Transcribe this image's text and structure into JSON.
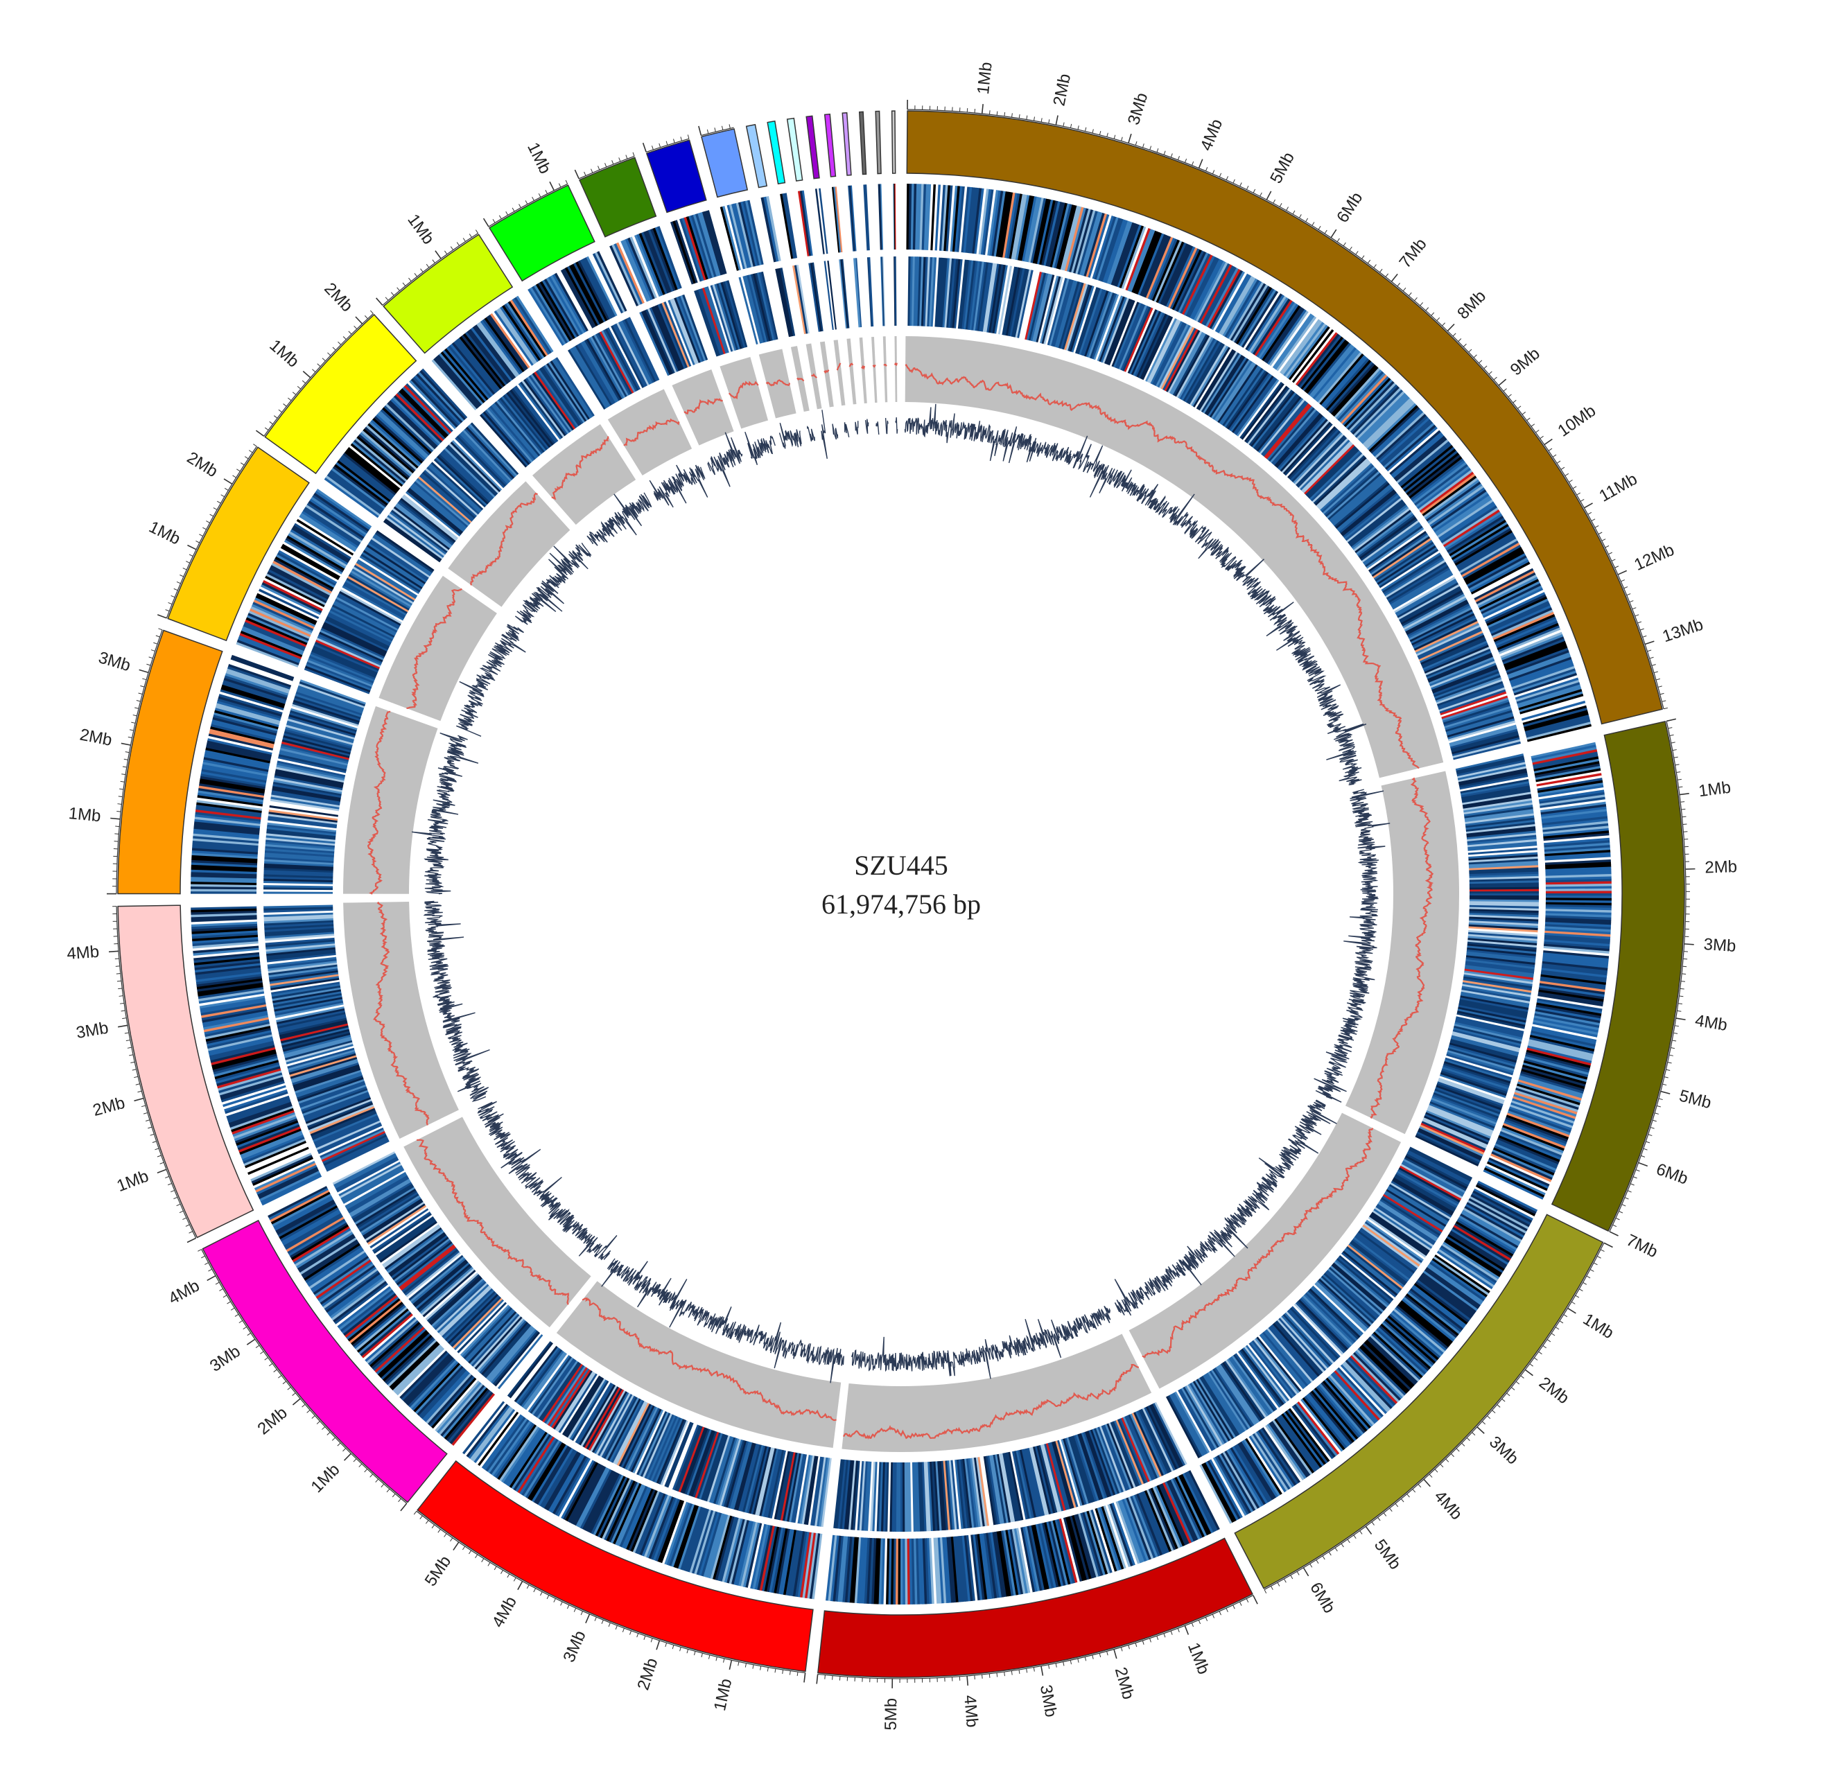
{
  "center": {
    "name": "SZU445",
    "size_label": "61,974,756 bp"
  },
  "chromosomes": [
    {
      "id": "chr1",
      "size_mb": 13.9,
      "color": "#996600",
      "labels": [
        "1Mb",
        "2Mb",
        "3Mb",
        "4Mb",
        "5Mb",
        "6Mb",
        "7Mb",
        "8Mb",
        "9Mb",
        "10Mb",
        "11Mb",
        "12Mb",
        "13Mb"
      ],
      "label_dir": "cw"
    },
    {
      "id": "chr2",
      "size_mb": 7.0,
      "color": "#666600",
      "labels": [
        "1Mb",
        "2Mb",
        "3Mb",
        "4Mb",
        "5Mb",
        "6Mb",
        "7Mb"
      ],
      "label_dir": "cw"
    },
    {
      "id": "chr3",
      "size_mb": 6.6,
      "color": "#99991E",
      "labels": [
        "1Mb",
        "2Mb",
        "3Mb",
        "4Mb",
        "5Mb",
        "6Mb"
      ],
      "label_dir": "cw"
    },
    {
      "id": "chr4",
      "size_mb": 6.0,
      "color": "#CC0000",
      "labels": [
        "1Mb",
        "2Mb",
        "3Mb",
        "4Mb",
        "5Mb"
      ],
      "label_dir": "cw"
    },
    {
      "id": "chr5",
      "size_mb": 5.7,
      "color": "#FF0000",
      "labels": [
        "1Mb",
        "2Mb",
        "3Mb",
        "4Mb",
        "5Mb"
      ],
      "label_dir": "ccw"
    },
    {
      "id": "chr6",
      "size_mb": 4.4,
      "color": "#FF00CC",
      "labels": [
        "1Mb",
        "2Mb",
        "3Mb",
        "4Mb"
      ],
      "label_dir": "ccw"
    },
    {
      "id": "chr7",
      "size_mb": 4.6,
      "color": "#FFCCCC",
      "labels": [
        "1Mb",
        "2Mb",
        "3Mb",
        "4Mb"
      ],
      "label_dir": "ccw"
    },
    {
      "id": "chr8",
      "size_mb": 3.6,
      "color": "#FF9900",
      "labels": [
        "1Mb",
        "2Mb",
        "3Mb"
      ],
      "label_dir": "ccw"
    },
    {
      "id": "chr9",
      "size_mb": 2.6,
      "color": "#FFCC00",
      "labels": [
        "1Mb",
        "2Mb"
      ],
      "label_dir": "ccw"
    },
    {
      "id": "chr10",
      "size_mb": 2.2,
      "color": "#FFFF00",
      "labels": [
        "1Mb",
        "2Mb"
      ],
      "label_dir": "ccw"
    },
    {
      "id": "chr11",
      "size_mb": 1.6,
      "color": "#CCFF00",
      "labels": [
        "1Mb"
      ],
      "label_dir": "ccw"
    },
    {
      "id": "chr12",
      "size_mb": 1.2,
      "color": "#00FF00",
      "labels": [
        "1Mb"
      ],
      "label_dir": "ccw"
    },
    {
      "id": "chr13",
      "size_mb": 0.8,
      "color": "#358000",
      "labels": [],
      "label_dir": "ccw"
    },
    {
      "id": "chr14",
      "size_mb": 0.6,
      "color": "#0000CC",
      "labels": [],
      "label_dir": "ccw"
    },
    {
      "id": "chr15",
      "size_mb": 0.45,
      "color": "#6699FF",
      "labels": [],
      "label_dir": "ccw"
    },
    {
      "id": "chr16",
      "size_mb": 0.12,
      "color": "#99CCFF",
      "labels": [],
      "label_dir": "ccw"
    },
    {
      "id": "chr17",
      "size_mb": 0.1,
      "color": "#00FFFF",
      "labels": [],
      "label_dir": "ccw"
    },
    {
      "id": "chr18",
      "size_mb": 0.09,
      "color": "#CCFFFF",
      "labels": [],
      "label_dir": "ccw"
    },
    {
      "id": "chr19",
      "size_mb": 0.08,
      "color": "#9900CC",
      "labels": [],
      "label_dir": "ccw"
    },
    {
      "id": "chr20",
      "size_mb": 0.07,
      "color": "#CC33FF",
      "labels": [],
      "label_dir": "ccw"
    },
    {
      "id": "chr21",
      "size_mb": 0.06,
      "color": "#CC99FF",
      "labels": [],
      "label_dir": "ccw"
    },
    {
      "id": "chr22",
      "size_mb": 0.05,
      "color": "#666666",
      "labels": [],
      "label_dir": "ccw"
    },
    {
      "id": "chr23",
      "size_mb": 0.05,
      "color": "#999999",
      "labels": [],
      "label_dir": "ccw"
    },
    {
      "id": "chr24",
      "size_mb": 0.04,
      "color": "#CCCCCC",
      "labels": [],
      "label_dir": "ccw"
    }
  ],
  "tracks": [
    {
      "name": "heatmap-outer",
      "palette": [
        "#000000",
        "#0b2a55",
        "#144a86",
        "#1f63a8",
        "#3e82bf",
        "#8bb6d9",
        "#ffffff",
        "#cc1a1a",
        "#f08a5d"
      ]
    },
    {
      "name": "heatmap-inner",
      "palette": [
        "#08234a",
        "#0d3a6e",
        "#17508f",
        "#2668a8",
        "#4d8cc4",
        "#a9c9e4",
        "#ffffff",
        "#d01c1c",
        "#f39b6d"
      ]
    },
    {
      "name": "gc-content",
      "background": "#c0c0c0",
      "line_color": "#e05a4f"
    },
    {
      "name": "gc-skew",
      "line_color": "#2b3a55"
    }
  ]
}
